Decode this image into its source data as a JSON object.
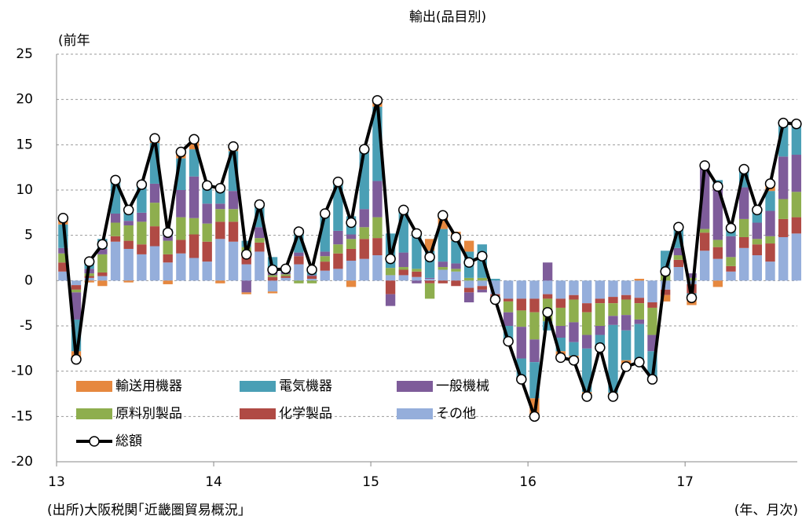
{
  "chart_data": {
    "type": "bar",
    "stacked": true,
    "title": "輸出(品目別)",
    "y_label": "(前年",
    "x_label": "(年、月次)",
    "source": "(出所)大阪税関｢近畿圏貿易概況」",
    "categories": [
      "13",
      null,
      null,
      null,
      null,
      null,
      null,
      null,
      null,
      null,
      null,
      null,
      "14",
      null,
      null,
      null,
      null,
      null,
      null,
      null,
      null,
      null,
      null,
      null,
      "15",
      null,
      null,
      null,
      null,
      null,
      null,
      null,
      null,
      null,
      null,
      null,
      "16",
      null,
      null,
      null,
      null,
      null,
      null,
      null,
      null,
      null,
      null,
      null,
      "17",
      null,
      null,
      null,
      null,
      null,
      null,
      null,
      null
    ],
    "ylim": [
      -20,
      25
    ],
    "yticks": [
      -20,
      -15,
      -10,
      -5,
      0,
      5,
      10,
      15,
      20,
      25
    ],
    "grid": true,
    "series": [
      {
        "name": "輸送用機器",
        "color": "#e6883f",
        "values": [
          0.7,
          -0.9,
          -0.2,
          -0.6,
          0,
          -0.2,
          0,
          0.5,
          -0.4,
          0.7,
          1.1,
          0.1,
          -0.3,
          0.5,
          -0.2,
          0,
          -0.2,
          0,
          0,
          0,
          0,
          0.2,
          -0.7,
          0,
          0.7,
          0,
          0,
          0.2,
          1.3,
          1.8,
          1.0,
          1.2,
          0,
          0,
          0,
          0,
          -2.0,
          0,
          -0.7,
          -0.5,
          -0.5,
          0,
          -0.4,
          -0.7,
          0.2,
          0,
          -0.7,
          0,
          -0.8,
          0,
          -0.7,
          0,
          0,
          0,
          0.8,
          0,
          0.2
        ]
      },
      {
        "name": "電気機器",
        "color": "#4a9fb5",
        "values": [
          2.6,
          -3.5,
          1.0,
          1.1,
          3.7,
          1.4,
          3.1,
          4.5,
          0.8,
          3.5,
          3.0,
          1.9,
          2.0,
          4.4,
          0.7,
          2.5,
          1.6,
          0.4,
          2.6,
          0.9,
          4.2,
          5.2,
          2.0,
          6.6,
          8.2,
          3.8,
          4.7,
          4.0,
          3.0,
          3.6,
          2.5,
          2.9,
          3.7,
          0.2,
          -1.7,
          -2.3,
          -4.0,
          -1.0,
          -1.5,
          -1.5,
          -4.8,
          -1.4,
          -7.5,
          -3.3,
          -4.4,
          -3.1,
          2.2,
          2.3,
          -0.5,
          0,
          0.9,
          0.9,
          2.0,
          1.4,
          2.2,
          3.7,
          3.2
        ]
      },
      {
        "name": "一般機械",
        "color": "#7e5c9a",
        "values": [
          0.6,
          -3.0,
          0.5,
          0.6,
          1.0,
          0.5,
          1.0,
          2.1,
          0.5,
          3.0,
          4.6,
          2.2,
          0.6,
          2.0,
          -1.3,
          1.2,
          0.4,
          0.2,
          0.4,
          0.1,
          0.5,
          1.5,
          0.5,
          2.0,
          4.0,
          -1.3,
          1.6,
          -0.3,
          0.1,
          0.6,
          0.6,
          -1.1,
          -0.3,
          -0.3,
          -1.5,
          -3.5,
          -2.5,
          2.0,
          -1.3,
          -2.2,
          -1.5,
          -1.0,
          -1.0,
          -1.7,
          -0.5,
          -1.8,
          0.5,
          0.8,
          0.5,
          7.0,
          5.7,
          2.3,
          3.5,
          1.8,
          2.8,
          4.7,
          4.1
        ]
      },
      {
        "name": "原料別製品",
        "color": "#8eae4e",
        "values": [
          1.0,
          -0.3,
          0.3,
          2.0,
          1.5,
          1.7,
          2.5,
          2.6,
          1.5,
          2.5,
          1.8,
          2.0,
          1.4,
          1.4,
          0.8,
          0.5,
          0.2,
          0.2,
          -0.3,
          -0.3,
          0.6,
          1.0,
          1.1,
          1.3,
          2.3,
          0.8,
          0.3,
          0.3,
          -1.7,
          0.3,
          0.3,
          0.3,
          0.3,
          -0.2,
          -1.2,
          -1.8,
          -3.0,
          -2.5,
          -2.0,
          -2.5,
          -2.5,
          -2.5,
          -1.4,
          -1.7,
          -1.8,
          -3.0,
          0.6,
          0.5,
          0.3,
          0.4,
          0.8,
          1.0,
          2.0,
          0.6,
          0.8,
          2.2,
          2.8
        ]
      },
      {
        "name": "化学製品",
        "color": "#b04a44",
        "values": [
          1.0,
          -0.5,
          0.2,
          0.4,
          0.6,
          0.9,
          1.1,
          2.2,
          0.9,
          1.5,
          2.6,
          2.2,
          1.9,
          2.2,
          1.1,
          1.0,
          0.4,
          0.2,
          0.9,
          0.3,
          1.0,
          1.7,
          1.3,
          2.2,
          1.9,
          -1.5,
          0.6,
          0.6,
          -0.3,
          -0.3,
          -0.6,
          -0.5,
          -0.4,
          -0.3,
          -0.3,
          -1.3,
          -1.5,
          -0.5,
          -1.0,
          -0.5,
          -1.0,
          -0.5,
          -0.7,
          -0.5,
          -0.6,
          -0.6,
          -0.6,
          0.8,
          -1.0,
          2.0,
          1.3,
          0.6,
          1.2,
          1.2,
          2.0,
          2.0,
          1.8
        ]
      },
      {
        "name": "その他",
        "color": "#95aedb",
        "values": [
          1.0,
          -0.5,
          0.3,
          0.5,
          4.3,
          3.5,
          2.9,
          3.8,
          2.0,
          3.0,
          2.5,
          2.1,
          4.6,
          4.3,
          1.8,
          3.2,
          -1.2,
          0.3,
          1.8,
          0.2,
          1.1,
          1.3,
          2.2,
          2.4,
          2.8,
          0.6,
          0.6,
          0.4,
          0.2,
          1.2,
          1.0,
          -0.8,
          -0.6,
          -1.5,
          -2.0,
          -2.0,
          -2.0,
          -1.5,
          -2.0,
          -1.6,
          -2.5,
          -2.0,
          -1.8,
          -1.6,
          -1.9,
          -2.4,
          -1.0,
          1.5,
          -0.4,
          3.3,
          2.4,
          1.0,
          3.6,
          2.8,
          2.1,
          4.8,
          5.2
        ]
      },
      {
        "name": "総額",
        "color": "#000000",
        "type": "line",
        "values": [
          6.9,
          -8.7,
          2.1,
          4.0,
          11.1,
          7.8,
          10.6,
          15.7,
          5.3,
          14.2,
          15.6,
          10.5,
          10.2,
          14.8,
          2.9,
          8.4,
          1.2,
          1.3,
          5.4,
          1.2,
          7.4,
          10.9,
          6.4,
          14.5,
          19.9,
          2.4,
          7.8,
          5.2,
          2.6,
          7.2,
          4.8,
          2.0,
          2.7,
          -2.1,
          -6.7,
          -10.9,
          -15.0,
          -3.5,
          -8.5,
          -8.8,
          -12.8,
          -7.4,
          -12.8,
          -9.5,
          -9.0,
          -10.9,
          1.0,
          5.9,
          -1.9,
          12.7,
          10.4,
          5.8,
          12.3,
          7.8,
          10.7,
          17.4,
          17.3
        ]
      }
    ]
  }
}
